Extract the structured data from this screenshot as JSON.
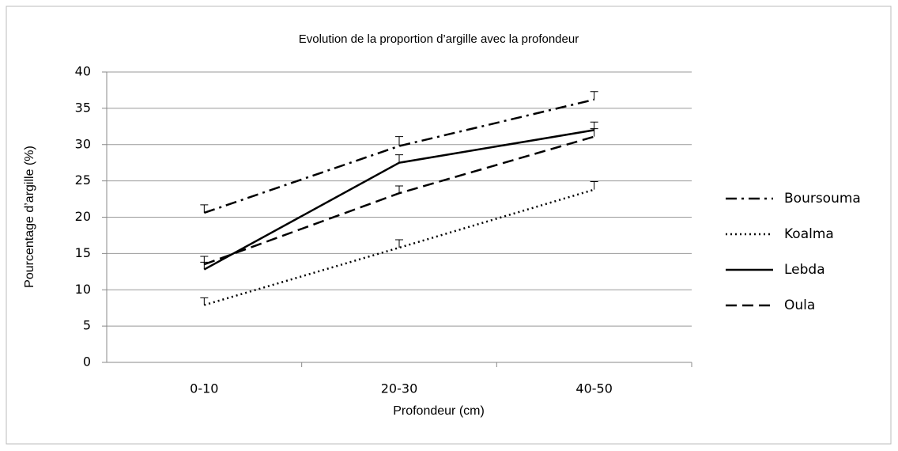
{
  "chart_data": {
    "type": "line",
    "title": "Evolution de la proportion d’argille avec la profondeur",
    "xlabel": "Profondeur  (cm)",
    "ylabel": "Pourcentage d’argille (%)",
    "categories": [
      "0-10",
      "20-30",
      "40-50"
    ],
    "series": [
      {
        "name": "Boursouma",
        "color": "#000000",
        "dash": "dashdot",
        "values": [
          20.6,
          29.8,
          36.2
        ],
        "errors": [
          1.1,
          1.3,
          1.1
        ]
      },
      {
        "name": "Koalma",
        "color": "#000000",
        "dash": "dotted",
        "values": [
          7.9,
          15.8,
          23.8
        ],
        "errors": [
          1.0,
          1.1,
          1.1
        ]
      },
      {
        "name": "Lebda",
        "color": "#000000",
        "dash": "solid",
        "values": [
          12.8,
          27.5,
          32.0
        ],
        "errors": [
          1.0,
          1.1,
          1.1
        ]
      },
      {
        "name": "Oula",
        "color": "#000000",
        "dash": "dashed",
        "values": [
          13.5,
          23.3,
          31.1
        ],
        "errors": [
          1.1,
          1.0,
          1.1
        ]
      }
    ],
    "ylim": [
      0,
      40
    ],
    "yticks": [
      0,
      5,
      10,
      15,
      20,
      25,
      30,
      35,
      40
    ],
    "grid": true,
    "legend": "right"
  }
}
